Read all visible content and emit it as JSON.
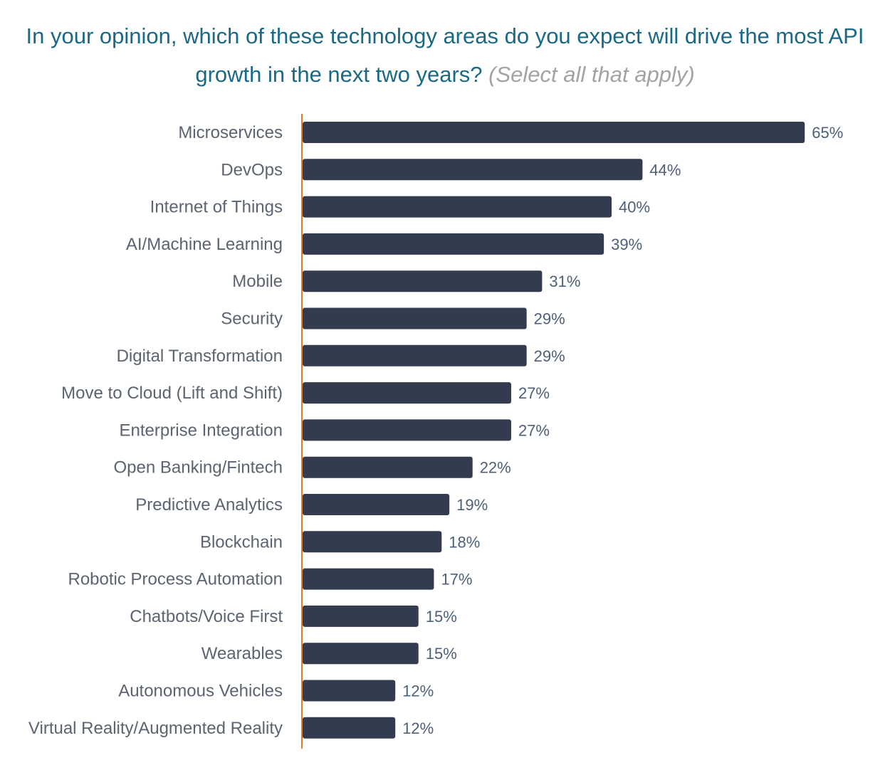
{
  "title": {
    "main": "In your opinion, which of these technology areas do you expect will drive the most API growth in the next two years?",
    "qualifier": "(Select all that apply)"
  },
  "colors": {
    "title": "#1a6a86",
    "qualifier": "#a3a3a3",
    "bar": "#323c4e",
    "axis": "#e07b2e",
    "category_label": "#5b6470",
    "value_label": "#4e6078"
  },
  "chart_data": {
    "type": "bar",
    "orientation": "horizontal",
    "title": "In your opinion, which of these technology areas do you expect will drive the most API growth in the next two years? (Select all that apply)",
    "xlabel": "",
    "ylabel": "",
    "xlim": [
      0,
      65
    ],
    "grid": false,
    "legend": "none",
    "value_suffix": "%",
    "categories": [
      "Microservices",
      "DevOps",
      "Internet of Things",
      "AI/Machine Learning",
      "Mobile",
      "Security",
      "Digital Transformation",
      "Move to Cloud (Lift and Shift)",
      "Enterprise Integration",
      "Open Banking/Fintech",
      "Predictive Analytics",
      "Blockchain",
      "Robotic Process Automation",
      "Chatbots/Voice First",
      "Wearables",
      "Autonomous Vehicles",
      "Virtual Reality/Augmented Reality"
    ],
    "values": [
      65,
      44,
      40,
      39,
      31,
      29,
      29,
      27,
      27,
      22,
      19,
      18,
      17,
      15,
      15,
      12,
      12
    ],
    "labels": [
      "65%",
      "44%",
      "40%",
      "39%",
      "31%",
      "29%",
      "29%",
      "27%",
      "27%",
      "22%",
      "19%",
      "18%",
      "17%",
      "15%",
      "15%",
      "12%",
      "12%"
    ]
  }
}
